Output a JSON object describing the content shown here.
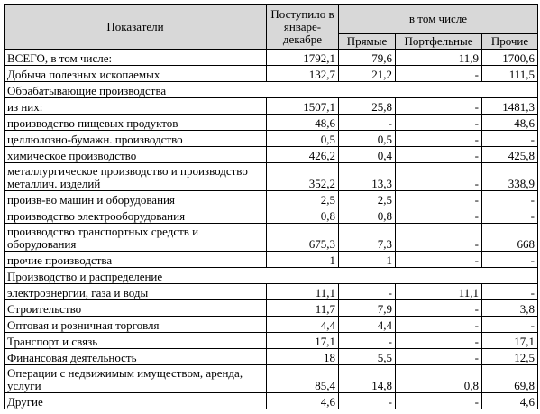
{
  "header": {
    "col_indicator": "Показатели",
    "col_received": "Поступило в январе-декабре",
    "col_including": "в том числе",
    "col_direct": "Прямые",
    "col_portfolio": "Портфельные",
    "col_other": "Прочие"
  },
  "rows": [
    {
      "name": "ВСЕГО, в том числе:",
      "total": "1792,1",
      "direct": "79,6",
      "portfolio": "11,9",
      "other": "1700,6"
    },
    {
      "name": "Добыча полезных ископаемых",
      "total": "132,7",
      "direct": "21,2",
      "portfolio": "-",
      "other": "111,5"
    },
    {
      "name": "Обрабатывающие производства"
    },
    {
      "name": "из них:",
      "total": "1507,1",
      "direct": "25,8",
      "portfolio": "-",
      "other": "1481,3"
    },
    {
      "name": "производство пищевых продуктов",
      "total": "48,6",
      "direct": "-",
      "portfolio": "-",
      "other": "48,6"
    },
    {
      "name": "целлюлозно-бумажн. производство",
      "total": "0,5",
      "direct": "0,5",
      "portfolio": "-",
      "other": "-"
    },
    {
      "name": "химическое производство",
      "total": "426,2",
      "direct": "0,4",
      "portfolio": "-",
      "other": "425,8"
    },
    {
      "name": "металлургическое производство и производство металлич. изделий",
      "total": "352,2",
      "direct": "13,3",
      "portfolio": "-",
      "other": "338,9"
    },
    {
      "name": "произв-во машин и оборудования",
      "total": "2,5",
      "direct": "2,5",
      "portfolio": "-",
      "other": "-"
    },
    {
      "name": "производство электрооборудования",
      "total": "0,8",
      "direct": "0,8",
      "portfolio": "-",
      "other": "-"
    },
    {
      "name": "производство транспортных средств и оборудования",
      "total": "675,3",
      "direct": "7,3",
      "portfolio": "-",
      "other": "668"
    },
    {
      "name": "прочие производства",
      "total": "1",
      "direct": "1",
      "portfolio": "-",
      "other": "-"
    },
    {
      "name": "Производство и распределение"
    },
    {
      "name": "электроэнергии, газа и воды",
      "total": "11,1",
      "direct": "-",
      "portfolio": "11,1",
      "other": "-"
    },
    {
      "name": "Строительство",
      "total": "11,7",
      "direct": "7,9",
      "portfolio": "-",
      "other": "3,8"
    },
    {
      "name": "Оптовая и розничная торговля",
      "total": "4,4",
      "direct": "4,4",
      "portfolio": "-",
      "other": "-"
    },
    {
      "name": "Транспорт и связь",
      "total": "17,1",
      "direct": "-",
      "portfolio": "-",
      "other": "17,1"
    },
    {
      "name": "Финансовая деятельность",
      "total": "18",
      "direct": "5,5",
      "portfolio": "-",
      "other": "12,5"
    },
    {
      "name": "Операции с недвижимым имуществом, аренда, услуги",
      "total": "85,4",
      "direct": "14,8",
      "portfolio": "0,8",
      "other": "69,8"
    },
    {
      "name": "Другие",
      "total": "4,6",
      "direct": "-",
      "portfolio": "-",
      "other": "4,6"
    }
  ]
}
